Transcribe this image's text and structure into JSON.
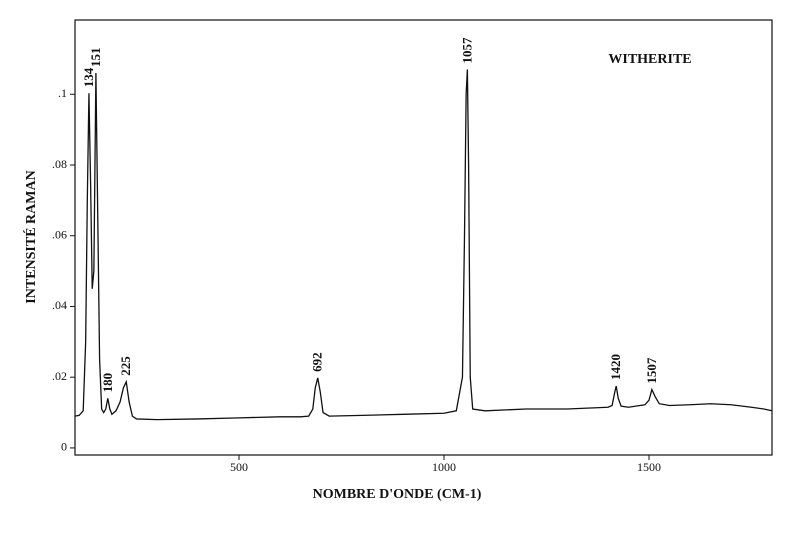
{
  "chart_data": {
    "type": "line",
    "label": "WITHERITE",
    "x_label": "NOMBRE D'ONDE (CM-1)",
    "y_label": "INTENSITÉ RAMAN",
    "color": "#111111",
    "x": [
      100,
      110,
      120,
      126,
      130,
      134,
      138,
      142,
      146,
      151,
      155,
      160,
      165,
      170,
      175,
      180,
      185,
      190,
      200,
      210,
      218,
      225,
      232,
      240,
      250,
      300,
      400,
      500,
      600,
      650,
      670,
      680,
      686,
      692,
      698,
      705,
      720,
      800,
      900,
      1000,
      1030,
      1045,
      1050,
      1054,
      1057,
      1060,
      1064,
      1070,
      1100,
      1200,
      1300,
      1400,
      1410,
      1416,
      1420,
      1425,
      1432,
      1450,
      1490,
      1500,
      1507,
      1515,
      1525,
      1550,
      1600,
      1650,
      1700,
      1750,
      1780,
      1800
    ],
    "values": [
      0.009,
      0.0092,
      0.0105,
      0.03,
      0.07,
      0.1003,
      0.075,
      0.045,
      0.05,
      0.106,
      0.07,
      0.025,
      0.011,
      0.01,
      0.011,
      0.014,
      0.011,
      0.0095,
      0.0105,
      0.013,
      0.017,
      0.0187,
      0.013,
      0.009,
      0.0082,
      0.008,
      0.0082,
      0.0085,
      0.0088,
      0.0088,
      0.009,
      0.011,
      0.017,
      0.0198,
      0.016,
      0.01,
      0.009,
      0.0092,
      0.0095,
      0.0098,
      0.0105,
      0.02,
      0.06,
      0.1,
      0.107,
      0.08,
      0.02,
      0.011,
      0.0105,
      0.011,
      0.011,
      0.0115,
      0.012,
      0.0155,
      0.0175,
      0.014,
      0.0118,
      0.0115,
      0.0122,
      0.0135,
      0.0165,
      0.0145,
      0.0125,
      0.012,
      0.0122,
      0.0125,
      0.0122,
      0.0115,
      0.011,
      0.0105
    ],
    "xlim": [
      100,
      1800
    ],
    "xticks": [
      500,
      1000,
      1500
    ],
    "ylim": [
      -0.002,
      0.121
    ],
    "yticks": [
      0,
      {
        "value": 0.02,
        "label": ".02"
      },
      {
        "value": 0.04,
        "label": ".04"
      },
      {
        "value": 0.06,
        "label": ".06"
      },
      {
        "value": 0.08,
        "label": ".08"
      },
      {
        "value": 0.1,
        "label": ".1"
      }
    ],
    "annotations": [
      {
        "text": "134",
        "x": 134,
        "y": 0.1003
      },
      {
        "text": "151",
        "x": 151,
        "y": 0.106
      },
      {
        "text": "180",
        "x": 180,
        "y": 0.014
      },
      {
        "text": "225",
        "x": 225,
        "y": 0.0187
      },
      {
        "text": "692",
        "x": 692,
        "y": 0.0198
      },
      {
        "text": "1057",
        "x": 1057,
        "y": 0.107
      },
      {
        "text": "1420",
        "x": 1420,
        "y": 0.0175
      },
      {
        "text": "1507",
        "x": 1507,
        "y": 0.0165
      }
    ]
  }
}
